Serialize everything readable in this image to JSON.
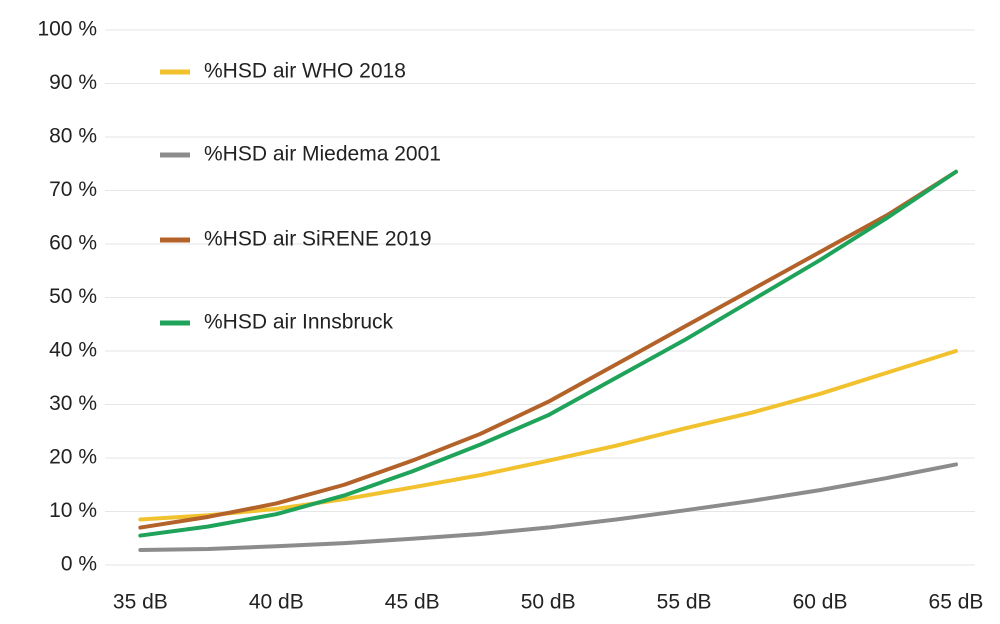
{
  "chart_data": {
    "type": "line",
    "x": [
      35,
      37.5,
      40,
      42.5,
      45,
      47.5,
      50,
      52.5,
      55,
      57.5,
      60,
      62.5,
      65
    ],
    "series": [
      {
        "name": "%HSD air WHO 2018",
        "color": "#f2c12e",
        "values": [
          8.5,
          9.3,
          10.5,
          12.3,
          14.5,
          16.8,
          19.5,
          22.3,
          25.5,
          28.5,
          32,
          36,
          40
        ]
      },
      {
        "name": "%HSD air Miedema 2001",
        "color": "#8c8c8c",
        "values": [
          2.8,
          3.0,
          3.5,
          4.1,
          4.9,
          5.8,
          7.0,
          8.5,
          10.2,
          12,
          14,
          16.3,
          18.8
        ]
      },
      {
        "name": "%HSD air SiRENE 2019",
        "color": "#b3622a",
        "values": [
          7,
          9,
          11.5,
          15,
          19.5,
          24.5,
          30.5,
          37.5,
          44.5,
          51.5,
          58.5,
          65.5,
          73.5
        ]
      },
      {
        "name": "%HSD air Innsbruck",
        "color": "#1fa35a",
        "values": [
          5.5,
          7.2,
          9.5,
          13,
          17.5,
          22.5,
          28,
          35,
          42,
          49.5,
          57,
          65,
          73.5
        ]
      }
    ],
    "xlim": [
      33.7,
      65.7
    ],
    "xticks": [
      {
        "value": 35,
        "label": "35 dB"
      },
      {
        "value": 40,
        "label": "40 dB"
      },
      {
        "value": 45,
        "label": "45 dB"
      },
      {
        "value": 50,
        "label": "50 dB"
      },
      {
        "value": 55,
        "label": "55 dB"
      },
      {
        "value": 60,
        "label": "60 dB"
      },
      {
        "value": 65,
        "label": "65 dB"
      }
    ],
    "ylim": [
      0,
      100
    ],
    "yticks": [
      {
        "value": 0,
        "label": "0 %"
      },
      {
        "value": 10,
        "label": "10 %"
      },
      {
        "value": 20,
        "label": "20 %"
      },
      {
        "value": 30,
        "label": "30 %"
      },
      {
        "value": 40,
        "label": "40 %"
      },
      {
        "value": 50,
        "label": "50 %"
      },
      {
        "value": 60,
        "label": "60 %"
      },
      {
        "value": 70,
        "label": "70 %"
      },
      {
        "value": 80,
        "label": "80 %"
      },
      {
        "value": 90,
        "label": "90 %"
      },
      {
        "value": 100,
        "label": "100 %"
      }
    ],
    "grid": true,
    "legend": "upper left"
  }
}
